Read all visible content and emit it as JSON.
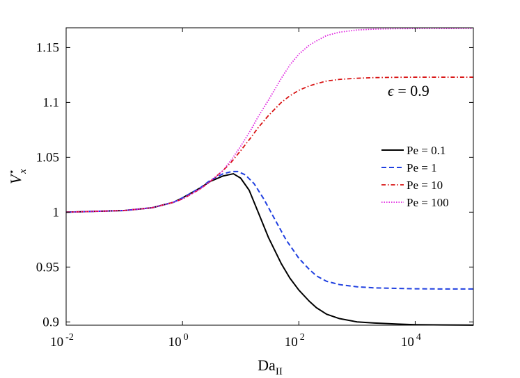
{
  "chart_data": {
    "type": "line",
    "title": "",
    "xlabel": "Da",
    "xlabel_subscript": "II",
    "ylabel": "V",
    "ylabel_superscript": "⋆",
    "ylabel_subscript": "x",
    "xscale": "log",
    "xlim": [
      0.01,
      100000
    ],
    "ylim": [
      0.897,
      1.168
    ],
    "x_ticks": [
      {
        "base": "10",
        "exp": "-2",
        "value": 0.01
      },
      {
        "base": "10",
        "exp": "0",
        "value": 1
      },
      {
        "base": "10",
        "exp": "2",
        "value": 100
      },
      {
        "base": "10",
        "exp": "4",
        "value": 10000
      }
    ],
    "y_ticks": [
      {
        "label": "0.9",
        "value": 0.9
      },
      {
        "label": "0.95",
        "value": 0.95
      },
      {
        "label": "1",
        "value": 1.0
      },
      {
        "label": "1.05",
        "value": 1.05
      },
      {
        "label": "1.1",
        "value": 1.1
      },
      {
        "label": "1.15",
        "value": 1.15
      }
    ],
    "annotation": {
      "symbol": "ϵ",
      "text": " = 0.9"
    },
    "legend_position": "right-middle",
    "series": [
      {
        "name": "Pe = 0.1",
        "color": "#000000",
        "dash": "solid",
        "x": [
          0.01,
          0.1,
          0.3,
          0.7,
          1,
          2,
          3,
          5,
          7.5,
          10,
          14,
          20,
          30,
          50,
          70,
          100,
          150,
          200,
          300,
          500,
          1000,
          2000,
          5000,
          10000,
          30000,
          100000
        ],
        "values": [
          1.0,
          1.0015,
          1.004,
          1.009,
          1.013,
          1.022,
          1.028,
          1.033,
          1.035,
          1.031,
          1.02,
          1.0,
          0.977,
          0.953,
          0.94,
          0.929,
          0.919,
          0.913,
          0.907,
          0.903,
          0.9,
          0.899,
          0.898,
          0.8975,
          0.8972,
          0.8971
        ]
      },
      {
        "name": "Pe = 1",
        "color": "#1f3fe0",
        "dash": "dashed",
        "x": [
          0.01,
          0.1,
          0.3,
          0.7,
          1,
          2,
          3,
          5,
          7,
          9,
          12,
          17,
          25,
          40,
          60,
          100,
          150,
          200,
          300,
          500,
          1000,
          2000,
          5000,
          10000,
          30000,
          100000
        ],
        "values": [
          1.0,
          1.0015,
          1.004,
          1.009,
          1.013,
          1.022,
          1.029,
          1.035,
          1.037,
          1.037,
          1.034,
          1.026,
          1.012,
          0.992,
          0.975,
          0.958,
          0.948,
          0.942,
          0.937,
          0.934,
          0.932,
          0.931,
          0.9305,
          0.9302,
          0.93,
          0.93
        ]
      },
      {
        "name": "Pe = 10",
        "color": "#d81010",
        "dash": "dashdot",
        "x": [
          0.01,
          0.1,
          0.3,
          0.7,
          1,
          2,
          3,
          5,
          7,
          10,
          15,
          20,
          30,
          50,
          70,
          100,
          150,
          200,
          300,
          500,
          1000,
          2000,
          5000,
          10000,
          30000,
          100000
        ],
        "values": [
          1.0,
          1.0015,
          1.004,
          1.009,
          1.012,
          1.021,
          1.028,
          1.038,
          1.046,
          1.056,
          1.068,
          1.077,
          1.088,
          1.1,
          1.106,
          1.111,
          1.115,
          1.117,
          1.1195,
          1.121,
          1.122,
          1.1226,
          1.1229,
          1.123,
          1.123,
          1.123
        ]
      },
      {
        "name": "Pe = 100",
        "color": "#e020e0",
        "dash": "dotted",
        "x": [
          0.01,
          0.1,
          0.3,
          0.7,
          1,
          2,
          3,
          5,
          7,
          10,
          15,
          20,
          30,
          50,
          70,
          100,
          150,
          200,
          300,
          500,
          1000,
          2000,
          5000,
          10000,
          30000,
          100000
        ],
        "values": [
          1.0,
          1.0015,
          1.004,
          1.009,
          1.012,
          1.021,
          1.028,
          1.038,
          1.048,
          1.06,
          1.075,
          1.087,
          1.102,
          1.122,
          1.134,
          1.144,
          1.152,
          1.156,
          1.161,
          1.164,
          1.166,
          1.1668,
          1.1672,
          1.1673,
          1.1673,
          1.1673
        ]
      }
    ]
  }
}
